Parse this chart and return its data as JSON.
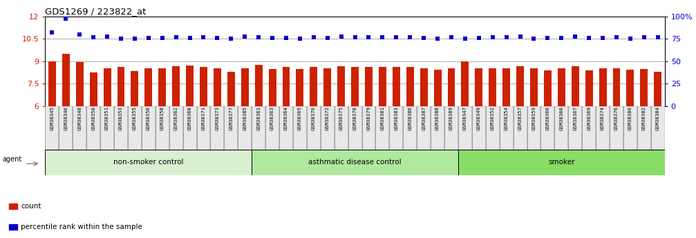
{
  "title": "GDS1269 / 223822_at",
  "categories": [
    "GSM38345",
    "GSM38346",
    "GSM38348",
    "GSM38350",
    "GSM38351",
    "GSM38353",
    "GSM38355",
    "GSM38356",
    "GSM38358",
    "GSM38362",
    "GSM38368",
    "GSM38371",
    "GSM38373",
    "GSM38377",
    "GSM38385",
    "GSM38361",
    "GSM38363",
    "GSM38364",
    "GSM38365",
    "GSM38370",
    "GSM38372",
    "GSM38375",
    "GSM38378",
    "GSM38379",
    "GSM38381",
    "GSM38383",
    "GSM38386",
    "GSM38387",
    "GSM38388",
    "GSM38389",
    "GSM38347",
    "GSM38349",
    "GSM38352",
    "GSM38354",
    "GSM38357",
    "GSM38359",
    "GSM38360",
    "GSM38366",
    "GSM38367",
    "GSM38369",
    "GSM38374",
    "GSM38376",
    "GSM38380",
    "GSM38382",
    "GSM38384"
  ],
  "bar_values": [
    9.0,
    9.5,
    8.95,
    8.25,
    8.55,
    8.6,
    8.35,
    8.55,
    8.55,
    8.65,
    8.7,
    8.6,
    8.55,
    8.3,
    8.55,
    8.75,
    8.5,
    8.6,
    8.5,
    8.6,
    8.55,
    8.65,
    8.6,
    8.6,
    8.6,
    8.6,
    8.6,
    8.55,
    8.45,
    8.55,
    9.0,
    8.55,
    8.55,
    8.55,
    8.65,
    8.55,
    8.4,
    8.55,
    8.65,
    8.4,
    8.55,
    8.55,
    8.45,
    8.5,
    8.3
  ],
  "dot_values_left_scale": [
    10.95,
    11.85,
    10.8,
    10.62,
    10.67,
    10.52,
    10.52,
    10.57,
    10.57,
    10.62,
    10.57,
    10.62,
    10.57,
    10.52,
    10.67,
    10.62,
    10.57,
    10.57,
    10.52,
    10.62,
    10.57,
    10.67,
    10.62,
    10.62,
    10.62,
    10.62,
    10.62,
    10.57,
    10.52,
    10.62,
    10.5,
    10.57,
    10.62,
    10.62,
    10.67,
    10.52,
    10.57,
    10.57,
    10.67,
    10.57,
    10.57,
    10.62,
    10.52,
    10.62,
    10.62
  ],
  "ylim_left": [
    6,
    12
  ],
  "ylim_right": [
    0,
    100
  ],
  "yticks_left": [
    6,
    7.5,
    9,
    10.5,
    12
  ],
  "yticks_right": [
    0,
    25,
    50,
    75,
    100
  ],
  "bar_color": "#cc2200",
  "dot_color": "#0000cc",
  "background_color": "#ffffff",
  "groups": [
    {
      "label": "non-smoker control",
      "start": 0,
      "end": 14,
      "color": "#d8f0d0"
    },
    {
      "label": "asthmatic disease control",
      "start": 15,
      "end": 29,
      "color": "#b0e8a0"
    },
    {
      "label": "smoker",
      "start": 30,
      "end": 44,
      "color": "#88dd66"
    }
  ],
  "agent_label": "agent",
  "legend_items": [
    {
      "label": "count",
      "color": "#cc2200"
    },
    {
      "label": "percentile rank within the sample",
      "color": "#0000cc"
    }
  ]
}
